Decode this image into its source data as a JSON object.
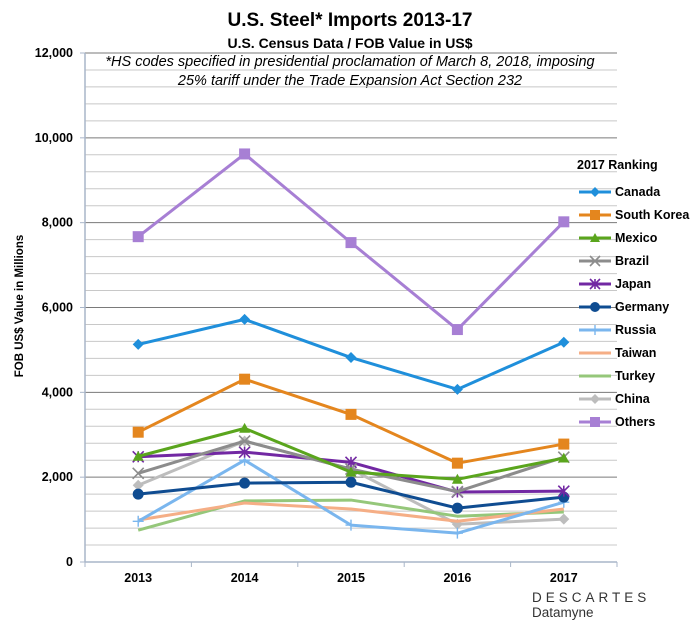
{
  "chart_data": {
    "type": "line",
    "title": "U.S. Steel* Imports 2013-17",
    "subtitle": "U.S. Census Data / FOB Value in US$",
    "note": "*HS codes specified in presidential proclamation of March 8, 2018, imposing 25% tariff under the Trade Expansion Act Section 232",
    "xlabel": "",
    "ylabel": "FOB US$ Value in Millions",
    "categories": [
      "2013",
      "2014",
      "2015",
      "2016",
      "2017"
    ],
    "ylim": [
      0,
      12000
    ],
    "yticks": [
      0,
      2000,
      4000,
      6000,
      8000,
      10000,
      12000
    ],
    "ytick_labels": [
      "0",
      "2,000",
      "4,000",
      "6,000",
      "8,000",
      "10,000",
      "12,000"
    ],
    "grid": true,
    "legend_title": "2017 Ranking",
    "legend_position": "right",
    "series": [
      {
        "name": "Canada",
        "color": "#1f8fdb",
        "marker": "diamond",
        "values": [
          5130,
          5720,
          4820,
          4070,
          5180
        ]
      },
      {
        "name": "South Korea",
        "color": "#e4861e",
        "marker": "square",
        "values": [
          3060,
          4310,
          3480,
          2330,
          2780
        ]
      },
      {
        "name": "Mexico",
        "color": "#5aa51d",
        "marker": "triangle",
        "values": [
          2490,
          3150,
          2120,
          1950,
          2450
        ]
      },
      {
        "name": "Brazil",
        "color": "#8c8c8c",
        "marker": "x",
        "values": [
          2090,
          2850,
          2190,
          1660,
          2470
        ]
      },
      {
        "name": "Japan",
        "color": "#7228a3",
        "marker": "star",
        "values": [
          2480,
          2590,
          2350,
          1650,
          1670
        ]
      },
      {
        "name": "Germany",
        "color": "#0f4c91",
        "marker": "circle",
        "values": [
          1600,
          1860,
          1880,
          1270,
          1530
        ]
      },
      {
        "name": "Russia",
        "color": "#7ab6ee",
        "marker": "plus",
        "values": [
          960,
          2400,
          870,
          680,
          1410
        ]
      },
      {
        "name": "Taiwan",
        "color": "#f5ae86",
        "marker": "none",
        "values": [
          990,
          1390,
          1250,
          960,
          1250
        ]
      },
      {
        "name": "Turkey",
        "color": "#95c77a",
        "marker": "none",
        "values": [
          750,
          1440,
          1460,
          1080,
          1180
        ]
      },
      {
        "name": "China",
        "color": "#bdbdbd",
        "marker": "diamond",
        "values": [
          1810,
          2850,
          2190,
          890,
          1010
        ]
      },
      {
        "name": "Others",
        "color": "#a77fd4",
        "marker": "square",
        "values": [
          7670,
          9620,
          7530,
          5480,
          8020
        ]
      }
    ]
  },
  "footer": {
    "brand": "DESCARTES",
    "product": "Datamyne"
  }
}
